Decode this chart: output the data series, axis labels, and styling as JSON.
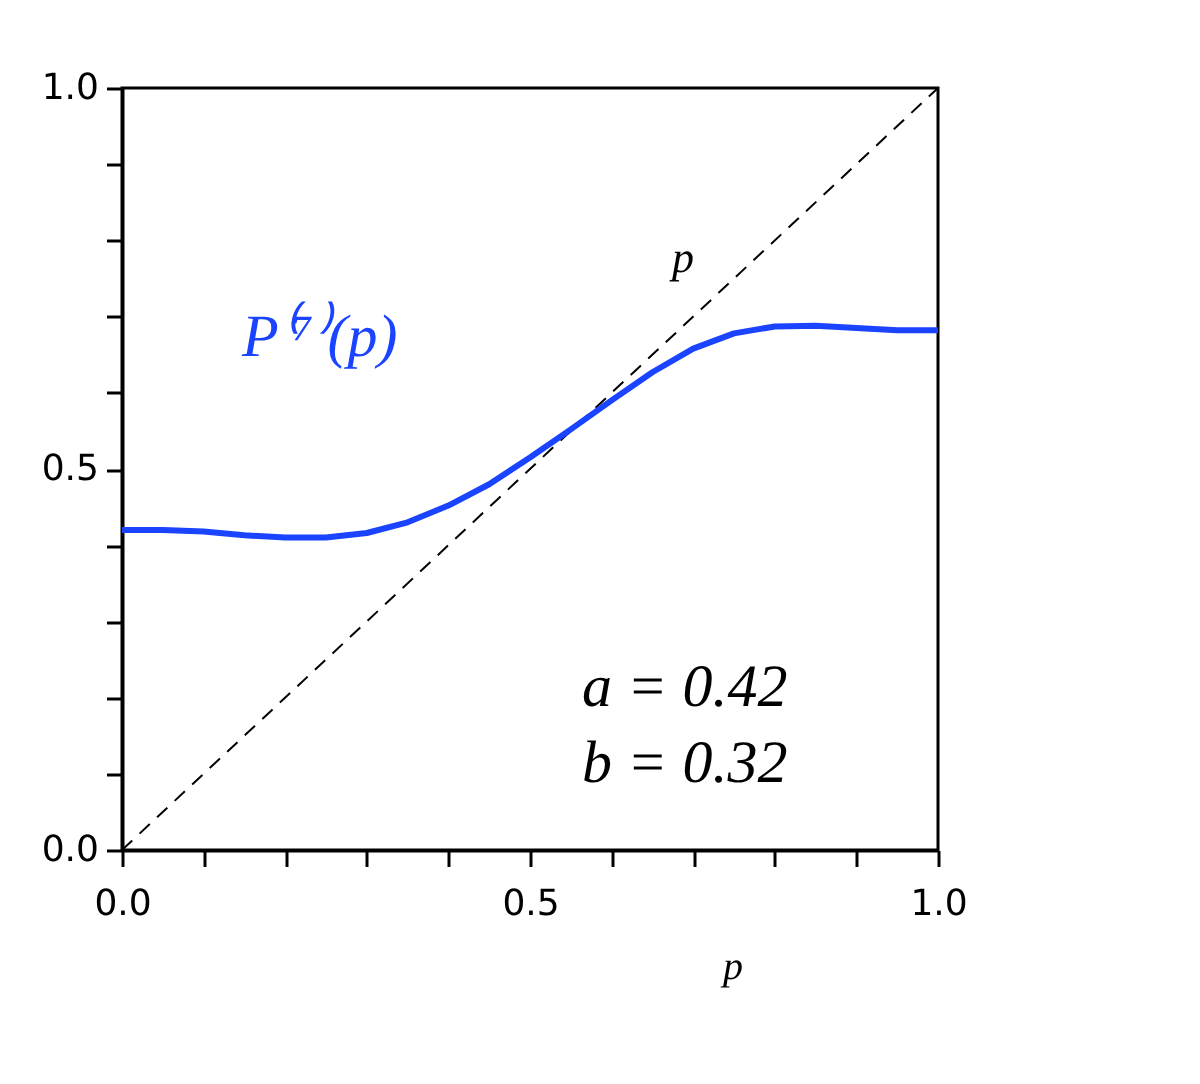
{
  "chart_data": {
    "type": "line",
    "xlabel": "p",
    "x": [
      0,
      0.05,
      0.1,
      0.15,
      0.2,
      0.25,
      0.3,
      0.35,
      0.4,
      0.45,
      0.5,
      0.55,
      0.6,
      0.65,
      0.7,
      0.75,
      0.8,
      0.85,
      0.9,
      0.95,
      1.0
    ],
    "series": [
      {
        "name": "p",
        "color": "#000000",
        "line_style": "dashed",
        "x": [
          0,
          1
        ],
        "values": [
          0,
          1
        ]
      },
      {
        "name": "P⁽⁷⁾(p)",
        "color": "#1a44ff",
        "line_style": "solid",
        "values": [
          0.42,
          0.42,
          0.418,
          0.413,
          0.41,
          0.41,
          0.416,
          0.43,
          0.452,
          0.48,
          0.515,
          0.552,
          0.59,
          0.627,
          0.658,
          0.678,
          0.687,
          0.688,
          0.685,
          0.682,
          0.682
        ]
      }
    ],
    "annotations": [
      "a = 0.42",
      "b = 0.32"
    ],
    "xlim": [
      0,
      1
    ],
    "ylim": [
      0,
      1
    ],
    "xticks": [
      {
        "value": 0,
        "label": "0.0"
      },
      {
        "value": 0.1,
        "label": null
      },
      {
        "value": 0.2,
        "label": null
      },
      {
        "value": 0.3,
        "label": null
      },
      {
        "value": 0.4,
        "label": null
      },
      {
        "value": 0.5,
        "label": "0.5"
      },
      {
        "value": 0.6,
        "label": null
      },
      {
        "value": 0.7,
        "label": null
      },
      {
        "value": 0.8,
        "label": null
      },
      {
        "value": 0.9,
        "label": null
      },
      {
        "value": 1,
        "label": "1.0"
      }
    ],
    "yticks": [
      {
        "value": 0,
        "label": "0.0"
      },
      {
        "value": 0.1,
        "label": null
      },
      {
        "value": 0.2,
        "label": null
      },
      {
        "value": 0.3,
        "label": null
      },
      {
        "value": 0.4,
        "label": null
      },
      {
        "value": 0.5,
        "label": "0.5"
      },
      {
        "value": 0.6,
        "label": null
      },
      {
        "value": 0.7,
        "label": null
      },
      {
        "value": 0.8,
        "label": null
      },
      {
        "value": 0.9,
        "label": null
      },
      {
        "value": 1,
        "label": "1.0"
      }
    ],
    "grid": false,
    "marker": "none"
  }
}
